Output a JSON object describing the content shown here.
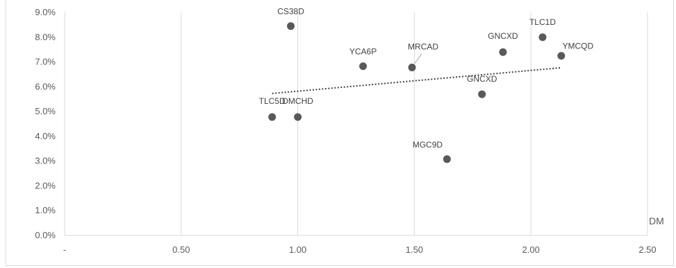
{
  "chart_data": {
    "type": "scatter",
    "title": "",
    "xlabel": "DM",
    "ylabel": "",
    "xlim": [
      0,
      2.5
    ],
    "ylim": [
      0,
      0.09
    ],
    "x_ticks": [
      {
        "value": 0,
        "label": "-"
      },
      {
        "value": 0.5,
        "label": "0.50"
      },
      {
        "value": 1.0,
        "label": "1.00"
      },
      {
        "value": 1.5,
        "label": "1.50"
      },
      {
        "value": 2.0,
        "label": "2.00"
      },
      {
        "value": 2.5,
        "label": "2.50"
      }
    ],
    "y_ticks": [
      {
        "value": 0.0,
        "label": "0.0%"
      },
      {
        "value": 0.01,
        "label": "1.0%"
      },
      {
        "value": 0.02,
        "label": "2.0%"
      },
      {
        "value": 0.03,
        "label": "3.0%"
      },
      {
        "value": 0.04,
        "label": "4.0%"
      },
      {
        "value": 0.05,
        "label": "5.0%"
      },
      {
        "value": 0.06,
        "label": "6.0%"
      },
      {
        "value": 0.07,
        "label": "7.0%"
      },
      {
        "value": 0.08,
        "label": "8.0%"
      },
      {
        "value": 0.09,
        "label": "9.0%"
      }
    ],
    "grid": "vertical",
    "point_color": "#595959",
    "points": [
      {
        "label": "CS38D",
        "x": 0.97,
        "y": 0.0845
      },
      {
        "label": "TLC1D",
        "x": 2.05,
        "y": 0.08
      },
      {
        "label": "GNCXD",
        "x": 1.88,
        "y": 0.074
      },
      {
        "label": "YMCQD",
        "x": 2.13,
        "y": 0.0725
      },
      {
        "label": "YCA6P",
        "x": 1.28,
        "y": 0.0683
      },
      {
        "label": "MRCAD",
        "x": 1.49,
        "y": 0.0678
      },
      {
        "label": "GNCXD",
        "x": 1.79,
        "y": 0.057
      },
      {
        "label": "TLC5D",
        "x": 0.89,
        "y": 0.0478
      },
      {
        "label": "DMCHD",
        "x": 1.0,
        "y": 0.0478
      },
      {
        "label": "MGC9D",
        "x": 1.64,
        "y": 0.0308
      }
    ],
    "trendline": {
      "type": "linear",
      "x": [
        0.89,
        2.13
      ],
      "y": [
        0.0573,
        0.0677
      ],
      "style": "dotted"
    }
  }
}
